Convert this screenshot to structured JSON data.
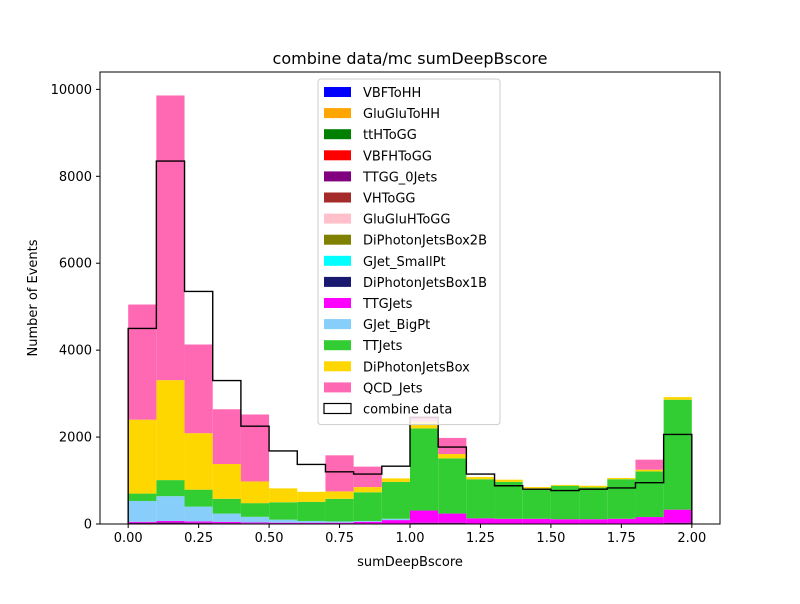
{
  "chart_data": {
    "type": "bar",
    "stacked": true,
    "title": "combine data/mc sumDeepBscore",
    "xlabel": "sumDeepBscore",
    "ylabel": "Number of Events",
    "xlim": [
      -0.1,
      2.1
    ],
    "ylim": [
      0,
      10400
    ],
    "xticks": [
      0.0,
      0.25,
      0.5,
      0.75,
      1.0,
      1.25,
      1.5,
      1.75,
      2.0
    ],
    "xtick_labels": [
      "0.00",
      "0.25",
      "0.50",
      "0.75",
      "1.00",
      "1.25",
      "1.50",
      "1.75",
      "2.00"
    ],
    "yticks": [
      0,
      2000,
      4000,
      6000,
      8000,
      10000
    ],
    "ytick_labels": [
      "0",
      "2000",
      "4000",
      "6000",
      "8000",
      "10000"
    ],
    "legend_position": "top-center",
    "bin_edges": [
      0.0,
      0.1,
      0.2,
      0.3,
      0.4,
      0.5,
      0.6,
      0.7,
      0.8,
      0.9,
      1.0,
      1.1,
      1.2,
      1.3,
      1.4,
      1.5,
      1.6,
      1.7,
      1.8,
      1.9,
      2.0
    ],
    "series": [
      {
        "name": "VBFToHH",
        "color": "#0000ff",
        "values": [
          0,
          0,
          0,
          0,
          0,
          0,
          0,
          0,
          0,
          0,
          0,
          0,
          0,
          0,
          0,
          0,
          0,
          0,
          0,
          0
        ]
      },
      {
        "name": "GluGluToHH",
        "color": "#ffa500",
        "values": [
          0,
          0,
          0,
          0,
          0,
          0,
          0,
          0,
          0,
          0,
          0,
          0,
          0,
          0,
          0,
          0,
          0,
          0,
          0,
          0
        ]
      },
      {
        "name": "ttHToGG",
        "color": "#008000",
        "values": [
          0,
          0,
          0,
          0,
          0,
          0,
          0,
          0,
          0,
          0,
          10,
          10,
          0,
          0,
          0,
          0,
          0,
          0,
          0,
          10
        ]
      },
      {
        "name": "VBFHToGG",
        "color": "#ff0000",
        "values": [
          0,
          0,
          0,
          0,
          0,
          0,
          0,
          0,
          0,
          0,
          0,
          0,
          0,
          0,
          0,
          0,
          0,
          0,
          0,
          0
        ]
      },
      {
        "name": "TTGG_0Jets",
        "color": "#800080",
        "values": [
          30,
          40,
          30,
          20,
          15,
          10,
          10,
          10,
          10,
          10,
          20,
          20,
          10,
          10,
          10,
          10,
          10,
          10,
          10,
          20
        ]
      },
      {
        "name": "VHToGG",
        "color": "#a52a2a",
        "values": [
          0,
          0,
          0,
          0,
          0,
          0,
          0,
          0,
          0,
          0,
          0,
          0,
          0,
          0,
          0,
          0,
          0,
          0,
          0,
          0
        ]
      },
      {
        "name": "GluGluHToGG",
        "color": "#ffc0cb",
        "values": [
          0,
          0,
          0,
          0,
          0,
          0,
          0,
          0,
          0,
          0,
          0,
          0,
          0,
          0,
          0,
          0,
          0,
          0,
          0,
          0
        ]
      },
      {
        "name": "DiPhotonJetsBox2B",
        "color": "#808000",
        "values": [
          0,
          0,
          0,
          0,
          0,
          0,
          0,
          0,
          0,
          0,
          0,
          0,
          0,
          0,
          0,
          0,
          0,
          0,
          0,
          0
        ]
      },
      {
        "name": "GJet_SmallPt",
        "color": "#00ffff",
        "values": [
          0,
          0,
          0,
          0,
          0,
          0,
          0,
          0,
          0,
          0,
          0,
          0,
          0,
          0,
          0,
          0,
          0,
          0,
          0,
          0
        ]
      },
      {
        "name": "DiPhotonJetsBox1B",
        "color": "#191970",
        "values": [
          0,
          0,
          0,
          0,
          0,
          0,
          0,
          0,
          0,
          0,
          0,
          0,
          0,
          0,
          0,
          0,
          0,
          0,
          0,
          0
        ]
      },
      {
        "name": "TTGJets",
        "color": "#ff00ff",
        "values": [
          20,
          30,
          30,
          30,
          20,
          20,
          20,
          20,
          40,
          80,
          280,
          210,
          120,
          110,
          110,
          100,
          100,
          110,
          150,
          300
        ]
      },
      {
        "name": "GJet_BigPt",
        "color": "#87cefa",
        "values": [
          480,
          570,
          340,
          190,
          130,
          70,
          40,
          30,
          20,
          30,
          0,
          0,
          0,
          0,
          0,
          0,
          0,
          0,
          0,
          0
        ]
      },
      {
        "name": "TTJets",
        "color": "#32cd32",
        "values": [
          170,
          370,
          390,
          340,
          315,
          400,
          440,
          520,
          660,
          850,
          1890,
          1270,
          900,
          850,
          700,
          770,
          730,
          910,
          1050,
          2530
        ]
      },
      {
        "name": "DiPhotonJetsBox",
        "color": "#ffd700",
        "values": [
          1700,
          2300,
          1300,
          800,
          500,
          320,
          230,
          170,
          120,
          80,
          150,
          100,
          50,
          50,
          30,
          20,
          40,
          30,
          40,
          60
        ]
      },
      {
        "name": "QCD_Jets",
        "color": "#ff69b4",
        "values": [
          2650,
          6550,
          2040,
          1260,
          1540,
          0,
          0,
          830,
          470,
          0,
          140,
          370,
          0,
          0,
          0,
          0,
          0,
          0,
          230,
          0
        ]
      }
    ],
    "data_series": {
      "name": "combine data",
      "color": "#000000",
      "values": [
        4500,
        8350,
        5350,
        3300,
        2250,
        1680,
        1370,
        1200,
        1150,
        1330,
        2450,
        1770,
        1150,
        880,
        800,
        770,
        800,
        830,
        950,
        2060
      ]
    }
  }
}
